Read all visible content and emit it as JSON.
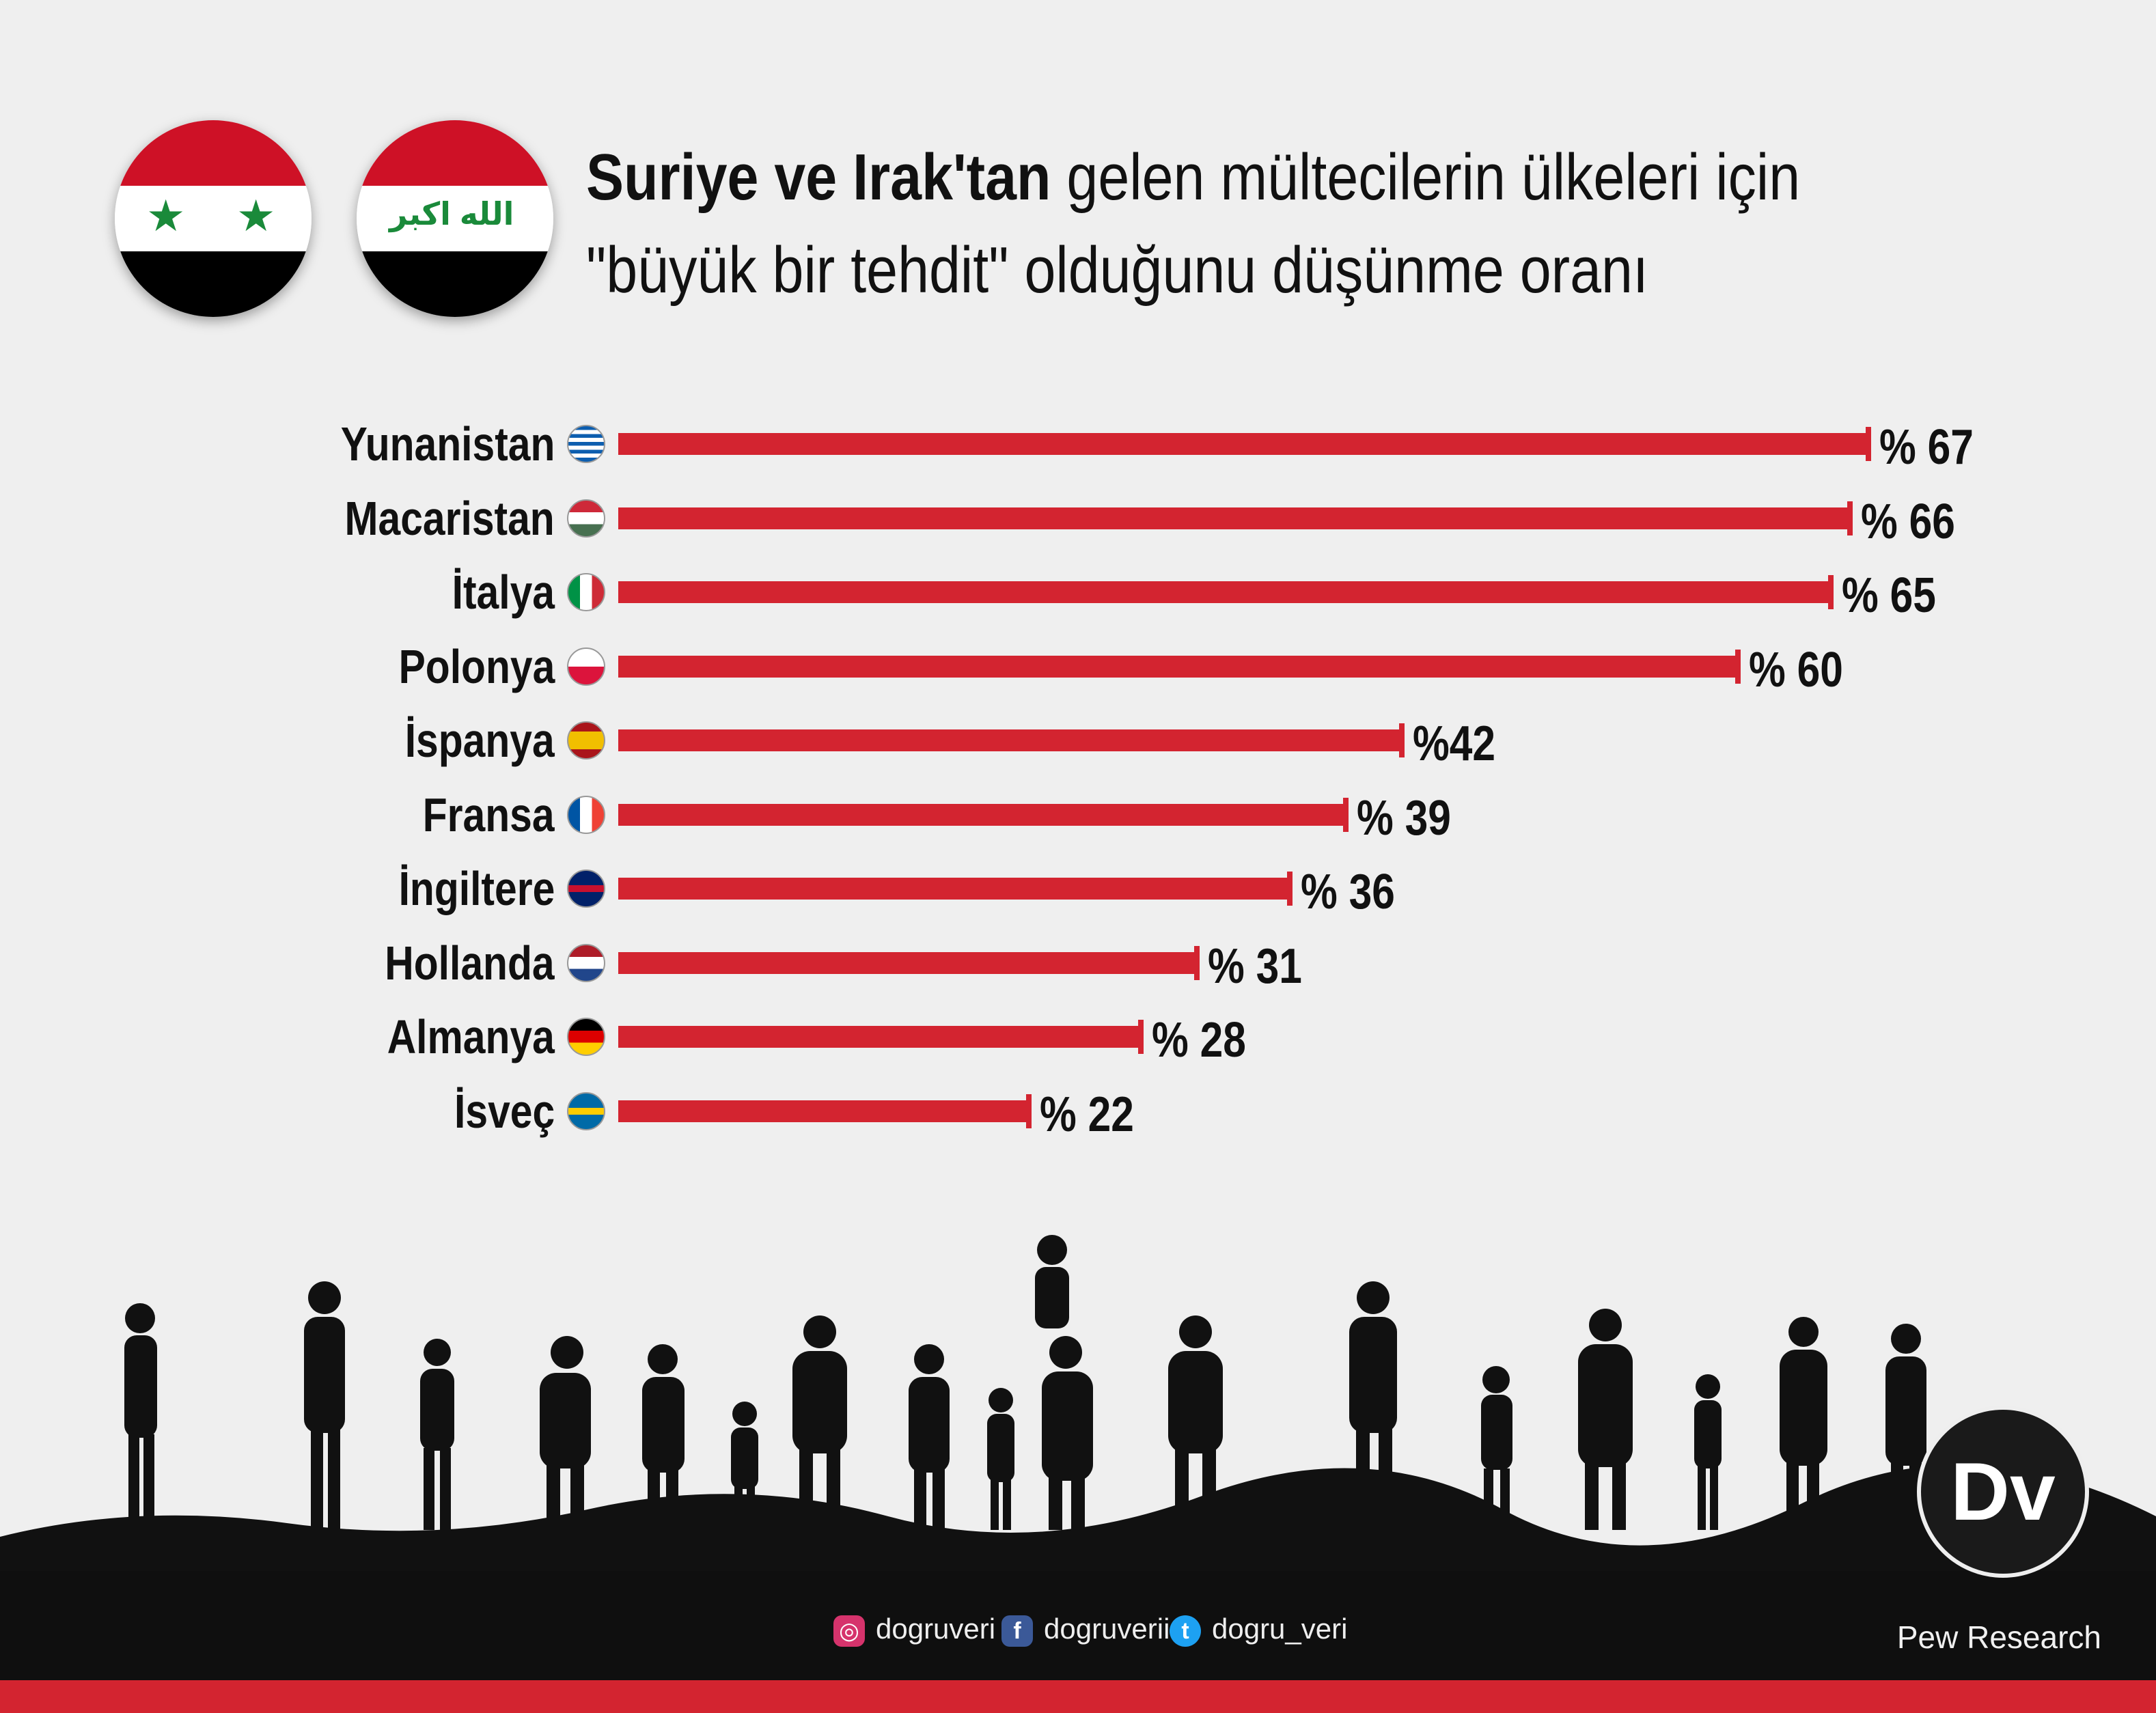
{
  "header": {
    "title_bold": "Suriye ve Irak'tan",
    "title_rest": "gelen mültecilerin ülkeleri için",
    "title_line2": "\"büyük bir tehdit\" olduğunu düşünme oranı"
  },
  "flags": {
    "syria": {
      "icon": "syria-flag-icon",
      "colors": [
        "#ce1126",
        "#ffffff",
        "#000000"
      ],
      "star": "★",
      "star_color": "#1a8a3a"
    },
    "iraq": {
      "icon": "iraq-flag-icon",
      "colors": [
        "#ce1126",
        "#ffffff",
        "#000000"
      ],
      "text": "الله اكبر",
      "text_color": "#1a8a3a"
    }
  },
  "chart_data": {
    "type": "bar",
    "orientation": "horizontal",
    "bar_color": "#d32430",
    "categories": [
      "Yunanistan",
      "Macaristan",
      "İtalya",
      "Polonya",
      "İspanya",
      "Fransa",
      "İngiltere",
      "Hollanda",
      "Almanya",
      "İsveç"
    ],
    "values": [
      67,
      66,
      65,
      60,
      42,
      39,
      36,
      31,
      28,
      22
    ],
    "value_labels": [
      "% 67",
      "% 66",
      "% 65",
      "% 60",
      "%42",
      "% 39",
      "% 36",
      "% 31",
      "% 28",
      "% 22"
    ],
    "country_flag_icons": [
      "greece-flag-icon",
      "hungary-flag-icon",
      "italy-flag-icon",
      "poland-flag-icon",
      "spain-flag-icon",
      "france-flag-icon",
      "uk-flag-icon",
      "netherlands-flag-icon",
      "germany-flag-icon",
      "sweden-flag-icon"
    ],
    "grid": false
  },
  "footer": {
    "instagram": "dogruveri",
    "facebook": "dogruverii",
    "twitter": "dogru_veri",
    "source": "Pew Research",
    "logo": "Dv"
  },
  "colors": {
    "background": "#efefef",
    "accent": "#d32430",
    "ground": "#0f0f0f"
  }
}
